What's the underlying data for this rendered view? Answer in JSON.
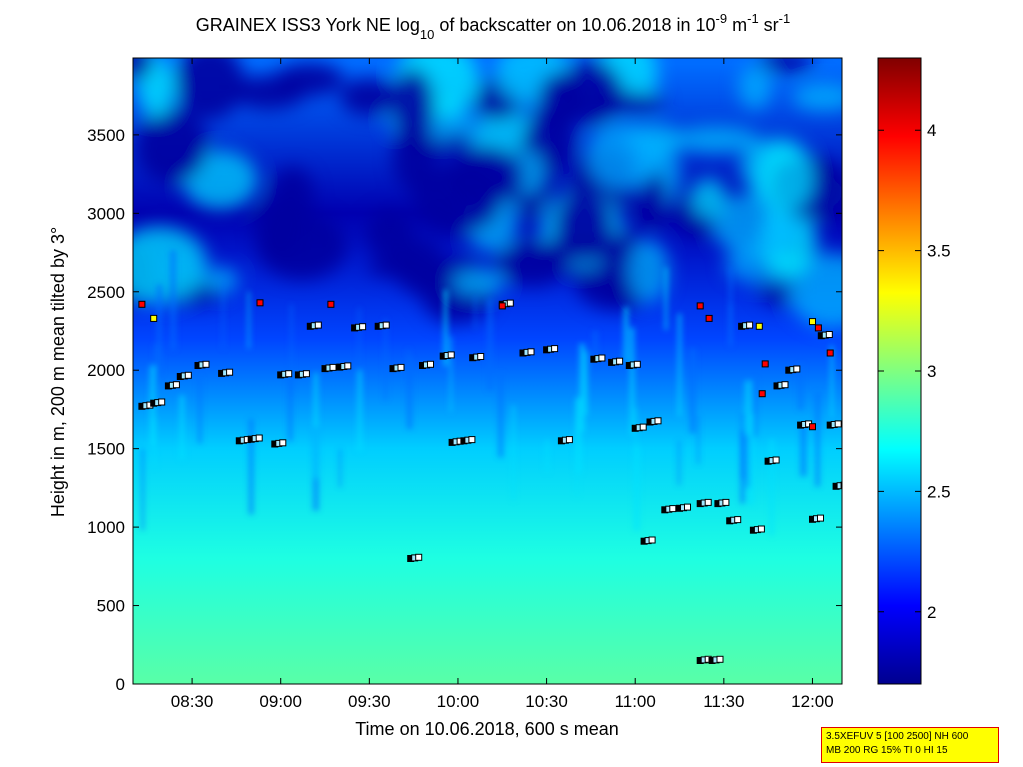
{
  "title": {
    "prefix": "GRAINEX ISS3 York NE log",
    "sub": "10",
    "middle": " of backscatter on 10.06.2018 in 10",
    "sup1": "-9",
    "unit1": " m",
    "sup2": "-1",
    "unit2": " sr",
    "sup3": "-1"
  },
  "info_box": {
    "line1": "3.5XEFUV 5 [100 2500] NH 600",
    "line2": "MB 200 RG 15% TI 0 HI 15"
  },
  "colors": {
    "colormap": [
      "#00008f",
      "#0000ff",
      "#0080ff",
      "#00ffff",
      "#80ff80",
      "#ffff00",
      "#ff8000",
      "#ff0000",
      "#800000"
    ],
    "marker_outline": "#000000",
    "marker_white": "#ffffff",
    "marker_red": "#ff0000",
    "marker_yellow": "#ffff00"
  },
  "chart_data": {
    "type": "heatmap",
    "xlabel": "Time on 10.06.2018, 600 s mean",
    "ylabel": "Height in m, 200 m mean tilted by 3°",
    "xlim": [
      "08:10",
      "12:10"
    ],
    "ylim": [
      0,
      3990
    ],
    "x_ticks": [
      "08:30",
      "09:00",
      "09:30",
      "10:00",
      "10:30",
      "11:00",
      "11:30",
      "12:00"
    ],
    "y_ticks": [
      0,
      500,
      1000,
      1500,
      2000,
      2500,
      3000,
      3500
    ],
    "colorbar": {
      "clim": [
        1.7,
        4.3
      ],
      "ticks": [
        "2",
        "2.5",
        "3",
        "3.5",
        "4"
      ]
    },
    "field_description_by_height": [
      {
        "height": 0,
        "value": 2.9
      },
      {
        "height": 800,
        "value": 2.75
      },
      {
        "height": 1500,
        "value": 2.55
      },
      {
        "height": 2200,
        "value": 2.2
      },
      {
        "height": 3000,
        "value": 1.8
      },
      {
        "height": 3950,
        "value": 2.3
      }
    ],
    "layer_markers": [
      {
        "time": "08:13",
        "height": 1770
      },
      {
        "time": "08:17",
        "height": 1790
      },
      {
        "time": "08:22",
        "height": 1900
      },
      {
        "time": "08:26",
        "height": 1960
      },
      {
        "time": "08:32",
        "height": 2030
      },
      {
        "time": "08:40",
        "height": 1980
      },
      {
        "time": "08:46",
        "height": 1550
      },
      {
        "time": "08:50",
        "height": 1560
      },
      {
        "time": "08:58",
        "height": 1530
      },
      {
        "time": "09:00",
        "height": 1970
      },
      {
        "time": "09:06",
        "height": 1970
      },
      {
        "time": "09:10",
        "height": 2280
      },
      {
        "time": "09:15",
        "height": 2010
      },
      {
        "time": "09:20",
        "height": 2020
      },
      {
        "time": "09:25",
        "height": 2270
      },
      {
        "time": "09:33",
        "height": 2280
      },
      {
        "time": "09:38",
        "height": 2010
      },
      {
        "time": "09:44",
        "height": 800
      },
      {
        "time": "09:48",
        "height": 2030
      },
      {
        "time": "09:55",
        "height": 2090
      },
      {
        "time": "09:58",
        "height": 1540
      },
      {
        "time": "10:02",
        "height": 1550
      },
      {
        "time": "10:05",
        "height": 2080
      },
      {
        "time": "10:15",
        "height": 2420
      },
      {
        "time": "10:22",
        "height": 2110
      },
      {
        "time": "10:30",
        "height": 2130
      },
      {
        "time": "10:35",
        "height": 1550
      },
      {
        "time": "10:46",
        "height": 2070
      },
      {
        "time": "10:52",
        "height": 2050
      },
      {
        "time": "10:58",
        "height": 2030
      },
      {
        "time": "11:00",
        "height": 1630
      },
      {
        "time": "11:05",
        "height": 1670
      },
      {
        "time": "11:03",
        "height": 910
      },
      {
        "time": "11:10",
        "height": 1110
      },
      {
        "time": "11:15",
        "height": 1120
      },
      {
        "time": "11:22",
        "height": 1150
      },
      {
        "time": "11:22",
        "height": 150
      },
      {
        "time": "11:26",
        "height": 150
      },
      {
        "time": "11:28",
        "height": 1150
      },
      {
        "time": "11:32",
        "height": 1040
      },
      {
        "time": "11:36",
        "height": 2280
      },
      {
        "time": "11:40",
        "height": 980
      },
      {
        "time": "11:45",
        "height": 1420
      },
      {
        "time": "11:48",
        "height": 1900
      },
      {
        "time": "11:52",
        "height": 2000
      },
      {
        "time": "11:56",
        "height": 1650
      },
      {
        "time": "12:00",
        "height": 1050
      },
      {
        "time": "12:03",
        "height": 2220
      },
      {
        "time": "12:06",
        "height": 1650
      },
      {
        "time": "12:08",
        "height": 1260
      }
    ],
    "high_markers_red": [
      {
        "time": "08:13",
        "height": 2420
      },
      {
        "time": "08:53",
        "height": 2430
      },
      {
        "time": "09:17",
        "height": 2420
      },
      {
        "time": "10:15",
        "height": 2410
      },
      {
        "time": "11:22",
        "height": 2410
      },
      {
        "time": "11:25",
        "height": 2330
      },
      {
        "time": "11:44",
        "height": 2040
      },
      {
        "time": "11:43",
        "height": 1850
      },
      {
        "time": "12:02",
        "height": 2270
      },
      {
        "time": "12:06",
        "height": 2110
      },
      {
        "time": "12:00",
        "height": 1640
      }
    ],
    "high_markers_yellow": [
      {
        "time": "08:17",
        "height": 2330
      },
      {
        "time": "11:42",
        "height": 2280
      },
      {
        "time": "12:00",
        "height": 2310
      }
    ]
  }
}
